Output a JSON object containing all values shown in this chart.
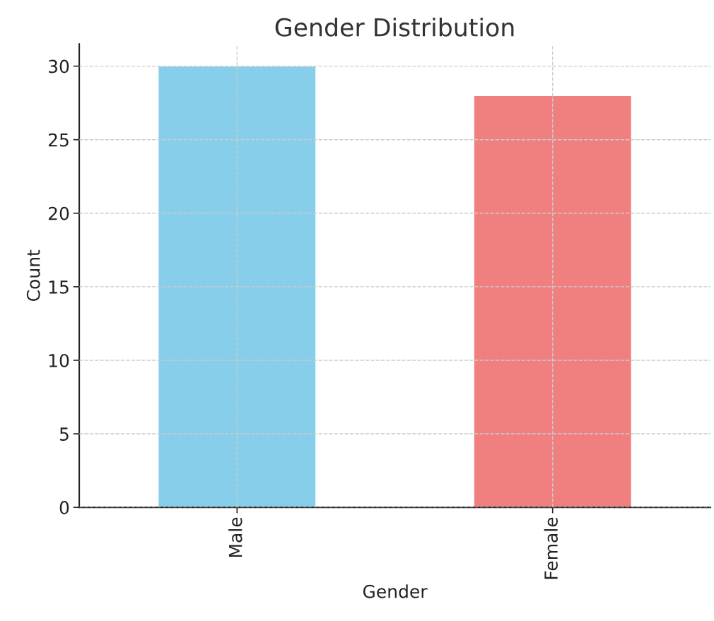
{
  "chart_data": {
    "type": "bar",
    "title": "Gender Distribution",
    "xlabel": "Gender",
    "ylabel": "Count",
    "categories": [
      "Male",
      "Female"
    ],
    "values": [
      30,
      28
    ],
    "colors": [
      "#87ceeb",
      "#f08080"
    ],
    "ylim": [
      0,
      31.5
    ],
    "yticks": [
      0,
      5,
      10,
      15,
      20,
      25,
      30
    ],
    "grid": true
  }
}
